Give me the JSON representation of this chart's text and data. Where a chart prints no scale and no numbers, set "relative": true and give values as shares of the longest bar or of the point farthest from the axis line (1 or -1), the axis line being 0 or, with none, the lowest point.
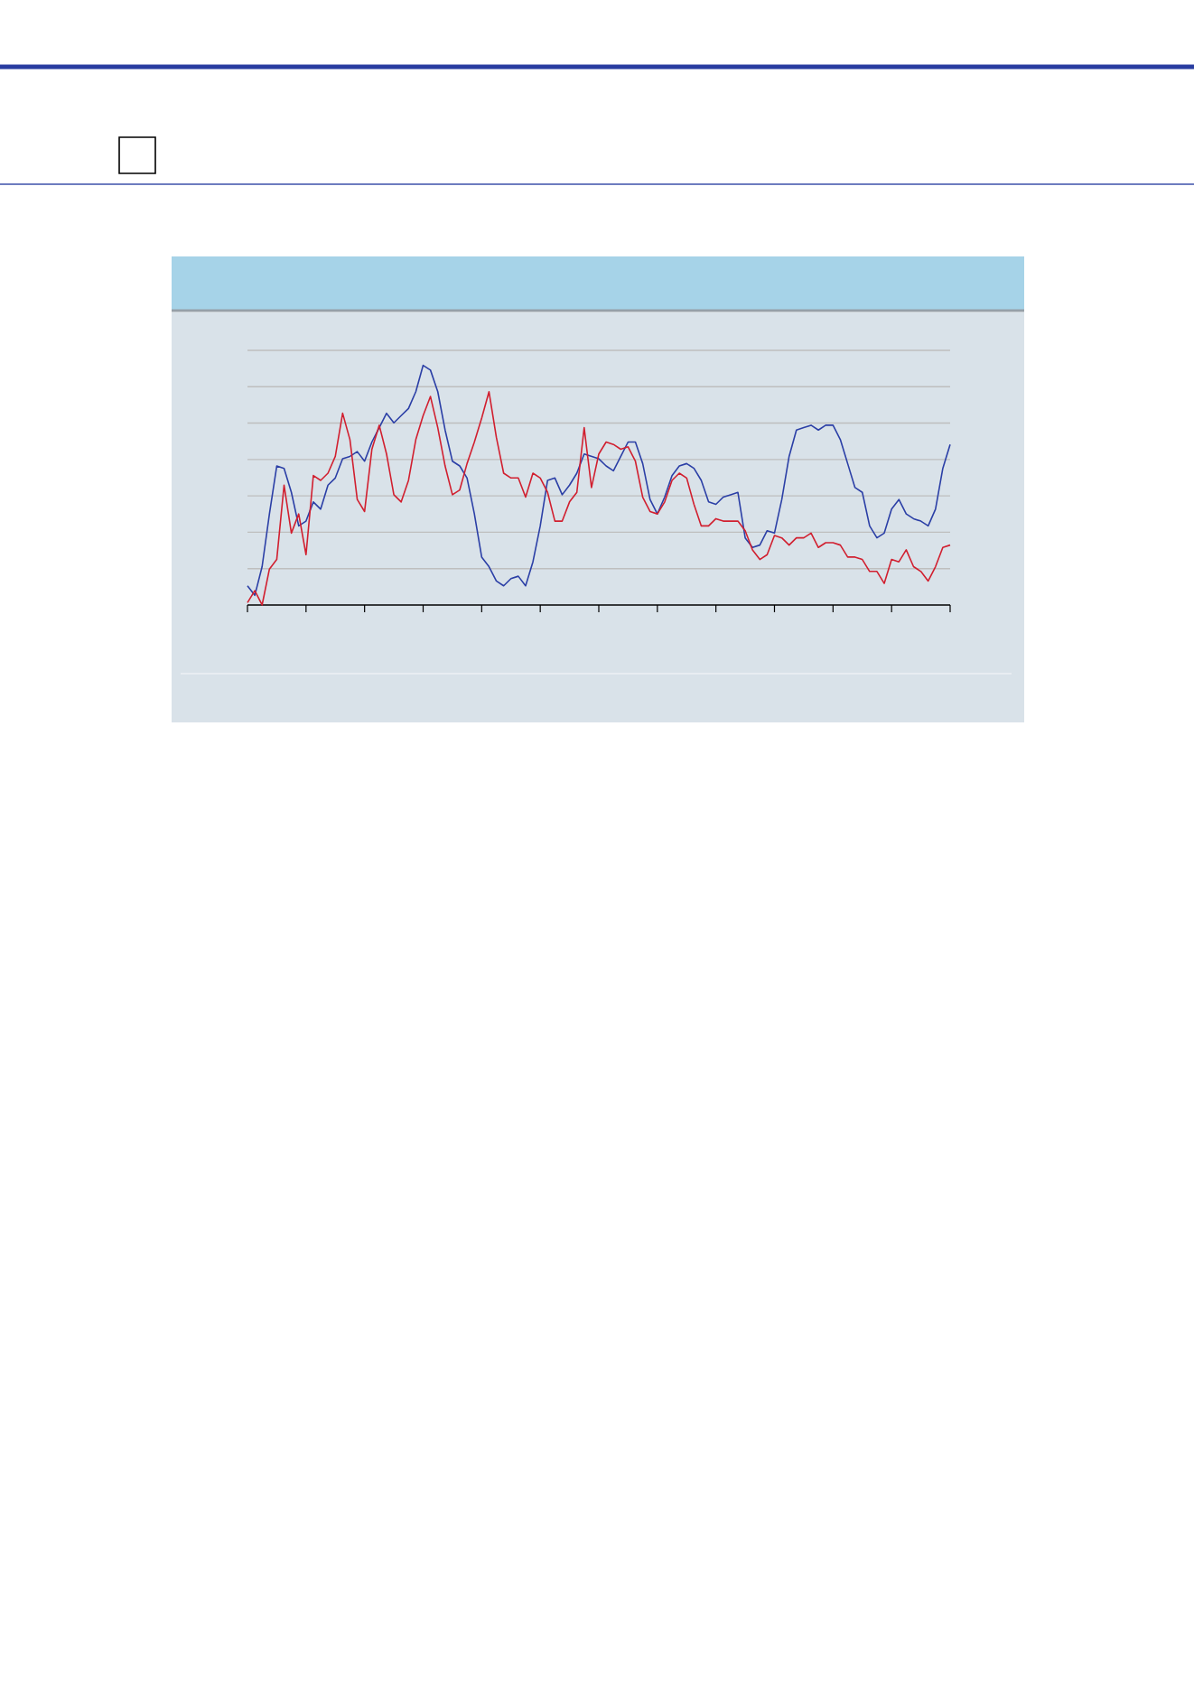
{
  "chart_data": {
    "type": "line",
    "relative": true,
    "grid": true,
    "categories": [
      null,
      null,
      null,
      null,
      null,
      null,
      null,
      null,
      null,
      null,
      null,
      null,
      null,
      null,
      null,
      null,
      null,
      null,
      null,
      null,
      null,
      null,
      null,
      null,
      null,
      null,
      null,
      null,
      null,
      null,
      null,
      null,
      null,
      null,
      null,
      null,
      null,
      null,
      null,
      null,
      null,
      null,
      null,
      null,
      null,
      null,
      null,
      null,
      null,
      null,
      null,
      null,
      null,
      null,
      null,
      null,
      null,
      null,
      null,
      null,
      null,
      null,
      null,
      null,
      null,
      null,
      null,
      null,
      null,
      null,
      null,
      null,
      null,
      null,
      null,
      null,
      null,
      null,
      null,
      null,
      null,
      null,
      null,
      null,
      null,
      null,
      null,
      null,
      null,
      null,
      null,
      null,
      null,
      null,
      null,
      null,
      null
    ],
    "series": [
      {
        "color": "#2b3fa6",
        "values": [
          0.08,
          0.04,
          0.16,
          0.38,
          0.58,
          0.57,
          0.47,
          0.33,
          0.35,
          0.43,
          0.4,
          0.5,
          0.53,
          0.61,
          0.62,
          0.64,
          0.6,
          0.68,
          0.74,
          0.8,
          0.76,
          0.79,
          0.82,
          0.89,
          1,
          0.98,
          0.89,
          0.73,
          0.6,
          0.58,
          0.53,
          0.38,
          0.2,
          0.16,
          0.1,
          0.08,
          0.11,
          0.12,
          0.08,
          0.18,
          0.33,
          0.52,
          0.53,
          0.46,
          0.5,
          0.55,
          0.63,
          0.62,
          0.61,
          0.58,
          0.56,
          0.62,
          0.68,
          0.68,
          0.59,
          0.44,
          0.38,
          0.45,
          0.54,
          0.58,
          0.59,
          0.57,
          0.52,
          0.43,
          0.42,
          0.45,
          0.46,
          0.47,
          0.28,
          0.24,
          0.25,
          0.31,
          0.3,
          0.44,
          0.62,
          0.73,
          0.74,
          0.75,
          0.73,
          0.75,
          0.75,
          0.69,
          0.59,
          0.49,
          0.47,
          0.33,
          0.28,
          0.3,
          0.4,
          0.44,
          0.38,
          0.36,
          0.35,
          0.33,
          0.4,
          0.57,
          0.67
        ]
      },
      {
        "color": "#d11f2f",
        "values": [
          0.01,
          0.06,
          0,
          0.15,
          0.19,
          0.5,
          0.3,
          0.38,
          0.21,
          0.54,
          0.52,
          0.55,
          0.62,
          0.8,
          0.69,
          0.44,
          0.39,
          0.65,
          0.75,
          0.63,
          0.46,
          0.43,
          0.52,
          0.69,
          0.79,
          0.87,
          0.74,
          0.58,
          0.46,
          0.48,
          0.59,
          0.68,
          0.78,
          0.89,
          0.7,
          0.55,
          0.53,
          0.53,
          0.45,
          0.55,
          0.53,
          0.47,
          0.35,
          0.35,
          0.43,
          0.47,
          0.74,
          0.49,
          0.63,
          0.68,
          0.67,
          0.65,
          0.66,
          0.6,
          0.45,
          0.39,
          0.38,
          0.43,
          0.52,
          0.55,
          0.53,
          0.42,
          0.33,
          0.33,
          0.36,
          0.35,
          0.35,
          0.35,
          0.31,
          0.23,
          0.19,
          0.21,
          0.29,
          0.28,
          0.25,
          0.28,
          0.28,
          0.3,
          0.24,
          0.26,
          0.26,
          0.25,
          0.2,
          0.2,
          0.19,
          0.14,
          0.14,
          0.09,
          0.19,
          0.18,
          0.23,
          0.16,
          0.14,
          0.1,
          0.16,
          0.24,
          0.25
        ]
      }
    ]
  }
}
